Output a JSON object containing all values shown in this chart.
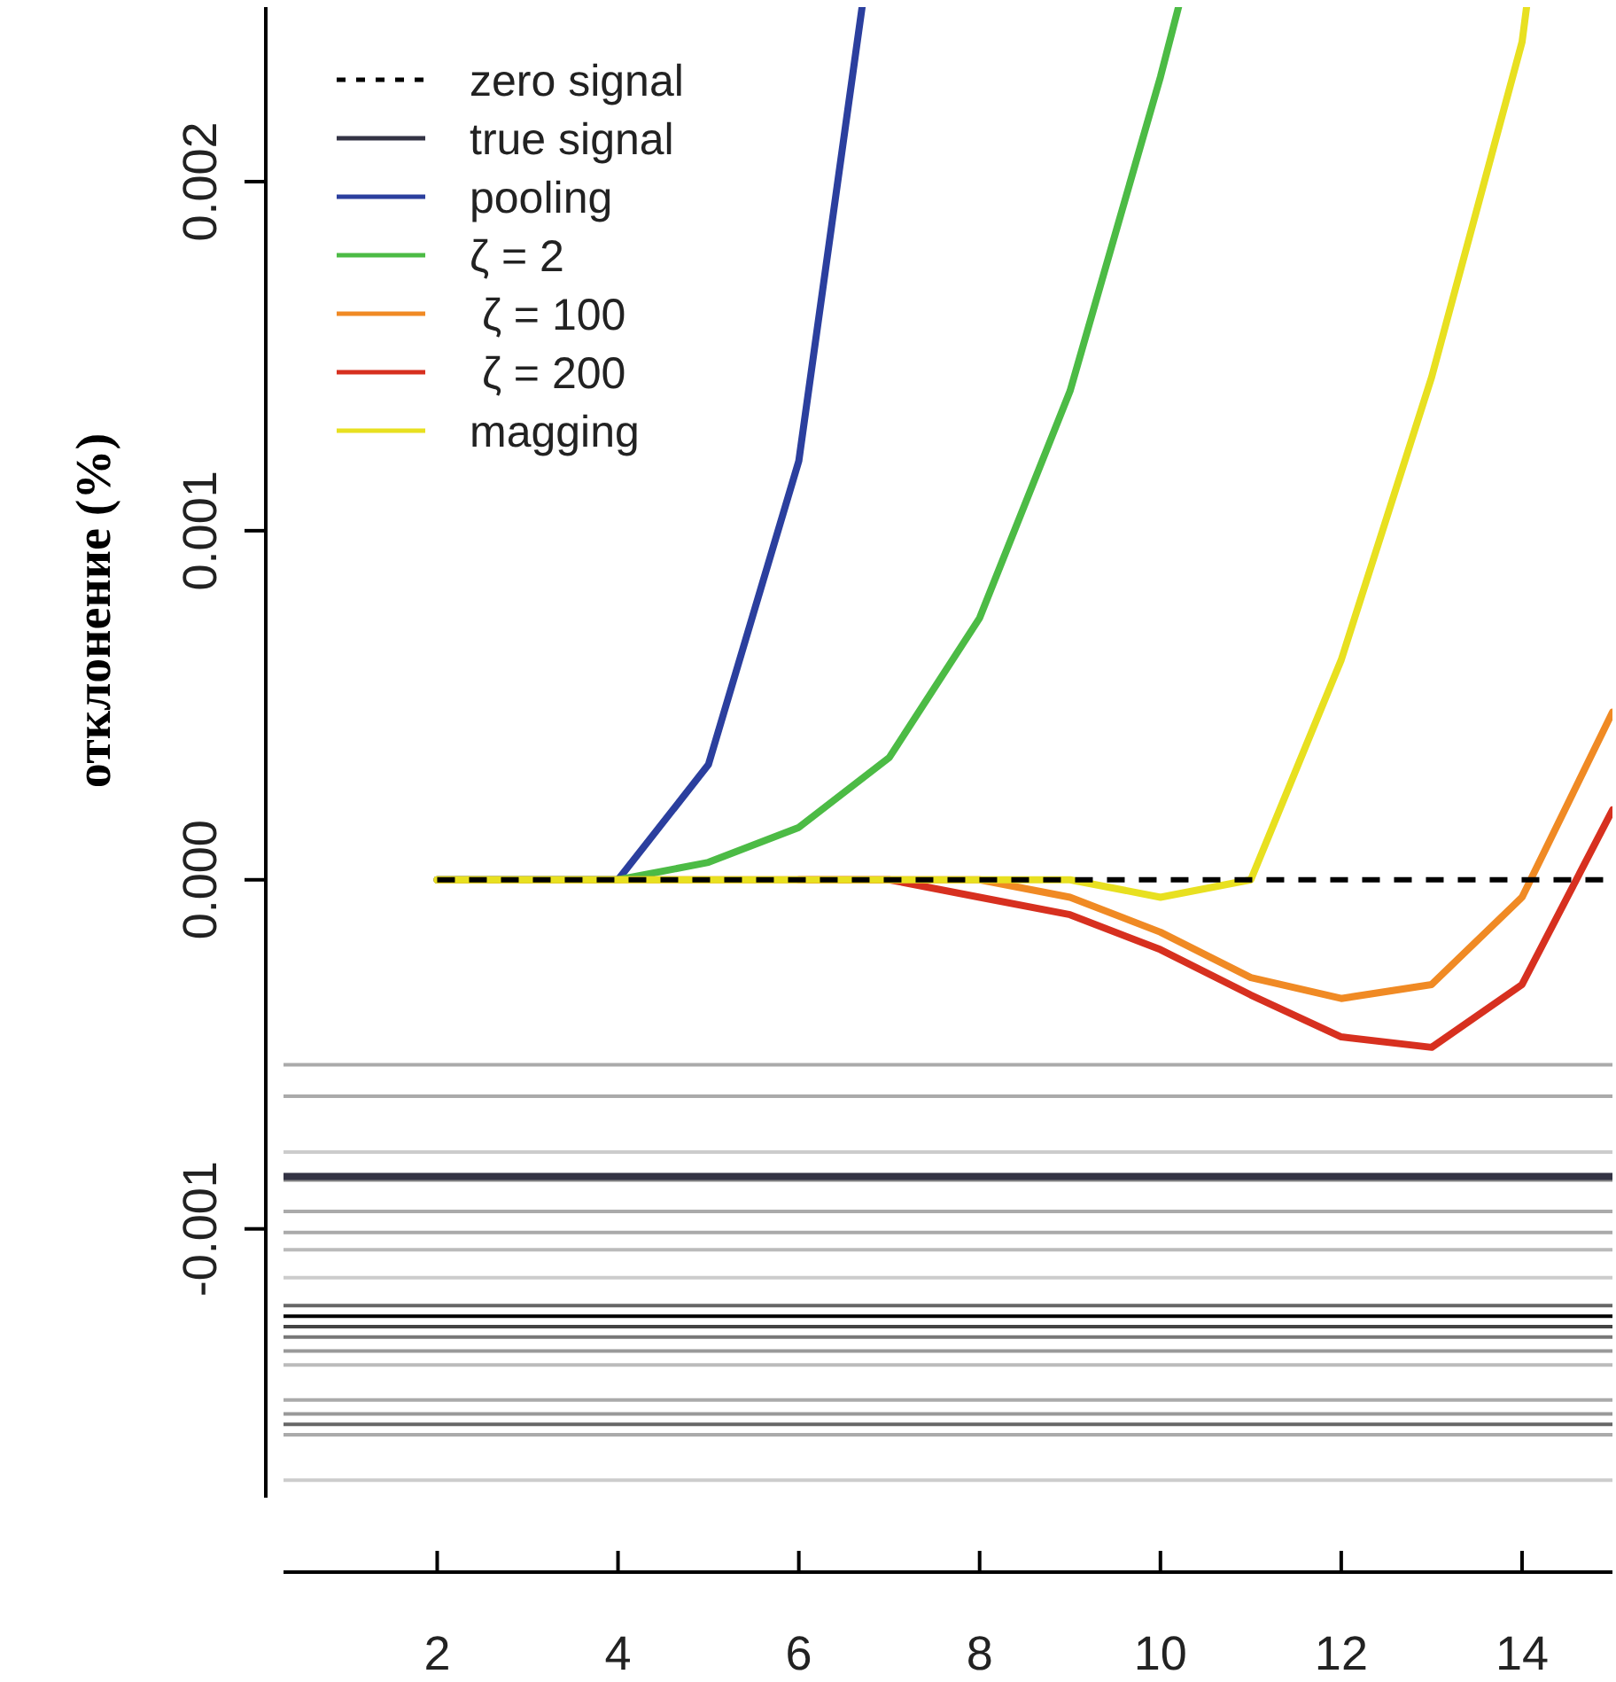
{
  "chart_data": {
    "type": "line",
    "ylabel": "отклонение (%)",
    "xlim": [
      0.3,
      15
    ],
    "ylim": [
      -0.00177,
      0.0025
    ],
    "xticks": [
      2,
      4,
      6,
      8,
      10,
      12,
      14
    ],
    "yticks": [
      {
        "value": -0.001,
        "label": "-0.001"
      },
      {
        "value": 0,
        "label": "0.000"
      },
      {
        "value": 0.001,
        "label": "0.001"
      },
      {
        "value": 0.002,
        "label": "0.002"
      }
    ],
    "legend": "top left",
    "series": [
      {
        "name": "zero signal",
        "color": "#000000",
        "line_style": "dashed",
        "x": [
          2,
          15
        ],
        "values": [
          0,
          0
        ]
      },
      {
        "name": "true signal",
        "color": "#333344",
        "x": [
          0.3,
          15
        ],
        "values": [
          -0.00085,
          -0.00085
        ]
      },
      {
        "name": "pooling",
        "color": "#2b3f9e",
        "x": [
          2,
          3,
          4,
          5,
          6,
          6.7
        ],
        "values": [
          0,
          0,
          0,
          0.00033,
          0.0012,
          0.0025
        ]
      },
      {
        "name": "ζ = 2",
        "color": "#4cbb45",
        "x": [
          2,
          3,
          4,
          5,
          6,
          7,
          8,
          9,
          10,
          10.2
        ],
        "values": [
          0,
          0,
          0,
          5e-05,
          0.00015,
          0.00035,
          0.00075,
          0.0014,
          0.0023,
          0.0025
        ]
      },
      {
        "name": " ζ = 100",
        "color": "#f08a24",
        "x": [
          2,
          3,
          4,
          5,
          6,
          7,
          8,
          9,
          10,
          11,
          12,
          13,
          14,
          15
        ],
        "values": [
          0,
          0,
          0,
          0,
          0,
          0,
          0,
          -5e-05,
          -0.00015,
          -0.00028,
          -0.00034,
          -0.0003,
          -5e-05,
          0.00048
        ]
      },
      {
        "name": " ζ = 200",
        "color": "#d7301f",
        "x": [
          6,
          7,
          8,
          9,
          10,
          11,
          12,
          13,
          14,
          15
        ],
        "values": [
          0,
          0,
          -5e-05,
          -0.0001,
          -0.0002,
          -0.00033,
          -0.00045,
          -0.00048,
          -0.0003,
          0.0002
        ]
      },
      {
        "name": "magging",
        "color": "#e8e020",
        "x": [
          2,
          3,
          4,
          5,
          6,
          7,
          8,
          9,
          10,
          11,
          12,
          13,
          14,
          14.05
        ],
        "values": [
          0,
          0,
          0,
          0,
          0,
          0,
          0,
          0,
          -5e-05,
          0,
          0.00063,
          0.00144,
          0.0024,
          0.0025
        ]
      }
    ],
    "ref_lines": [
      {
        "axis": "y",
        "value": -0.00053,
        "color": "#aaaaaa"
      },
      {
        "axis": "y",
        "value": -0.00062,
        "color": "#aaaaaa"
      },
      {
        "axis": "y",
        "value": -0.00078,
        "color": "#cccccc"
      },
      {
        "axis": "y",
        "value": -0.00086,
        "color": "#888888"
      },
      {
        "axis": "y",
        "value": -0.00095,
        "color": "#aaaaaa"
      },
      {
        "axis": "y",
        "value": -0.00101,
        "color": "#aaaaaa"
      },
      {
        "axis": "y",
        "value": -0.00106,
        "color": "#bbbbbb"
      },
      {
        "axis": "y",
        "value": -0.00114,
        "color": "#cccccc"
      },
      {
        "axis": "y",
        "value": -0.00122,
        "color": "#666666"
      },
      {
        "axis": "y",
        "value": -0.00125,
        "color": "#000000"
      },
      {
        "axis": "y",
        "value": -0.00128,
        "color": "#444444"
      },
      {
        "axis": "y",
        "value": -0.00131,
        "color": "#777777"
      },
      {
        "axis": "y",
        "value": -0.00135,
        "color": "#999999"
      },
      {
        "axis": "y",
        "value": -0.00139,
        "color": "#bbbbbb"
      },
      {
        "axis": "y",
        "value": -0.00149,
        "color": "#aaaaaa"
      },
      {
        "axis": "y",
        "value": -0.00153,
        "color": "#999999"
      },
      {
        "axis": "y",
        "value": -0.00156,
        "color": "#666666"
      },
      {
        "axis": "y",
        "value": -0.00159,
        "color": "#aaaaaa"
      },
      {
        "axis": "y",
        "value": -0.00172,
        "color": "#cccccc"
      }
    ]
  }
}
